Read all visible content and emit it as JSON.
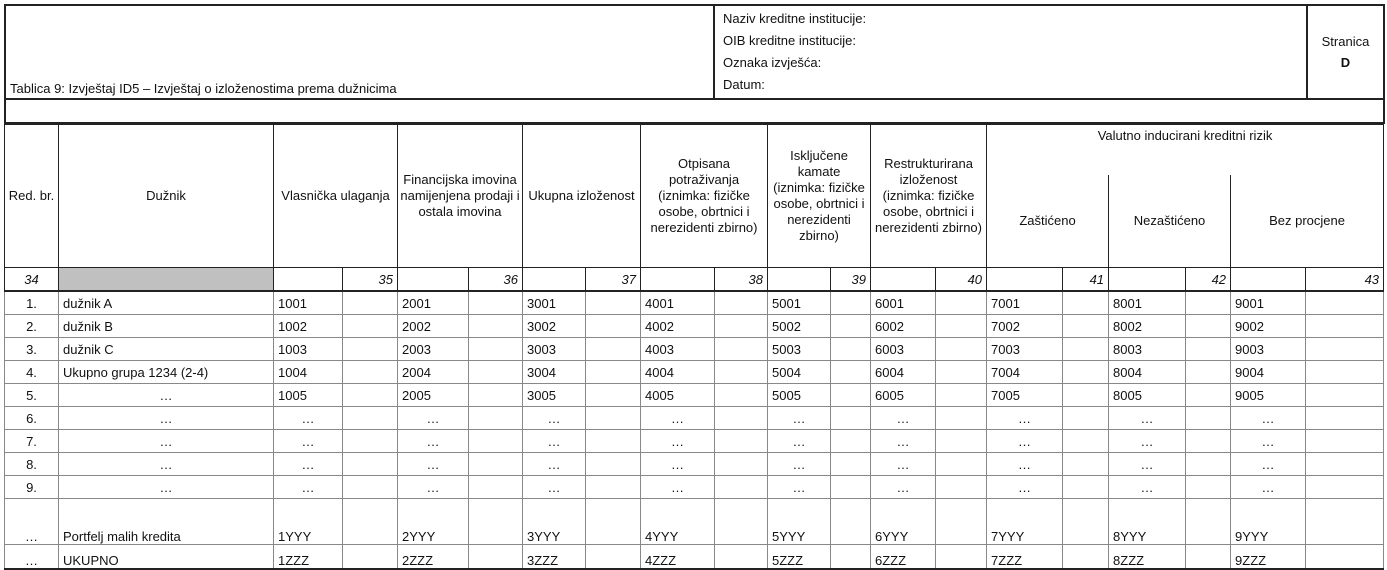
{
  "header": {
    "title": "Tablica 9: Izvještaj ID5 – Izvještaj o izloženostima prema dužnicima",
    "info": [
      "Naziv kreditne institucije:",
      "OIB kreditne institucije:",
      "Oznaka izvješća:",
      "Datum:"
    ],
    "page_label": "Stranica",
    "page_value": "D"
  },
  "columns": {
    "red_br": "Red. br.",
    "duznik": "Dužnik",
    "values": [
      "Vlasnička ulaganja",
      "Financijska imovina namijenjena prodaji i ostala imovina",
      "Ukupna izloženost",
      "Otpisana potraživanja (iznimka: fizičke osobe, obrtnici i nerezidenti zbirno)",
      "Isključene kamate (iznimka: fizičke osobe, obrtnici i nerezidenti zbirno)",
      "Restrukturirana izloženost (iznimka: fizičke osobe, obrtnici i nerezidenti zbirno)"
    ],
    "group": "Valutno inducirani kreditni rizik",
    "group_sub": [
      "Zaštićeno",
      "Nezaštićeno",
      "Bez procjene"
    ],
    "numbers": [
      "34",
      "35",
      "36",
      "37",
      "38",
      "39",
      "40",
      "41",
      "42",
      "43"
    ]
  },
  "rows": [
    {
      "no": "1.",
      "name": "dužnik A",
      "vals": [
        "1001",
        "2001",
        "3001",
        "4001",
        "5001",
        "6001",
        "7001",
        "8001",
        "9001"
      ]
    },
    {
      "no": "2.",
      "name": "dužnik B",
      "vals": [
        "1002",
        "2002",
        "3002",
        "4002",
        "5002",
        "6002",
        "7002",
        "8002",
        "9002"
      ]
    },
    {
      "no": "3.",
      "name": "dužnik C",
      "vals": [
        "1003",
        "2003",
        "3003",
        "4003",
        "5003",
        "6003",
        "7003",
        "8003",
        "9003"
      ]
    },
    {
      "no": "4.",
      "name": "Ukupno grupa 1234 (2-4)",
      "vals": [
        "1004",
        "2004",
        "3004",
        "4004",
        "5004",
        "6004",
        "7004",
        "8004",
        "9004"
      ]
    },
    {
      "no": "5.",
      "name": "…",
      "vals": [
        "1005",
        "2005",
        "3005",
        "4005",
        "5005",
        "6005",
        "7005",
        "8005",
        "9005"
      ]
    },
    {
      "no": "6.",
      "name": "…",
      "vals": [
        "…",
        "…",
        "…",
        "…",
        "…",
        "…",
        "…",
        "…",
        "…"
      ]
    },
    {
      "no": "7.",
      "name": "…",
      "vals": [
        "…",
        "…",
        "…",
        "…",
        "…",
        "…",
        "…",
        "…",
        "…"
      ]
    },
    {
      "no": "8.",
      "name": "…",
      "vals": [
        "…",
        "…",
        "…",
        "…",
        "…",
        "…",
        "…",
        "…",
        "…"
      ]
    },
    {
      "no": "9.",
      "name": "…",
      "vals": [
        "…",
        "…",
        "…",
        "…",
        "…",
        "…",
        "…",
        "…",
        "…"
      ]
    },
    {
      "no": "…",
      "name": "Portfelj malih kredita",
      "vals": [
        "1YYY",
        "2YYY",
        "3YYY",
        "4YYY",
        "5YYY",
        "6YYY",
        "7YYY",
        "8YYY",
        "9YYY"
      ]
    },
    {
      "no": "…",
      "name": "UKUPNO",
      "vals": [
        "1ZZZ",
        "2ZZZ",
        "3ZZZ",
        "4ZZZ",
        "5ZZZ",
        "6ZZZ",
        "7ZZZ",
        "8ZZZ",
        "9ZZZ"
      ]
    }
  ]
}
